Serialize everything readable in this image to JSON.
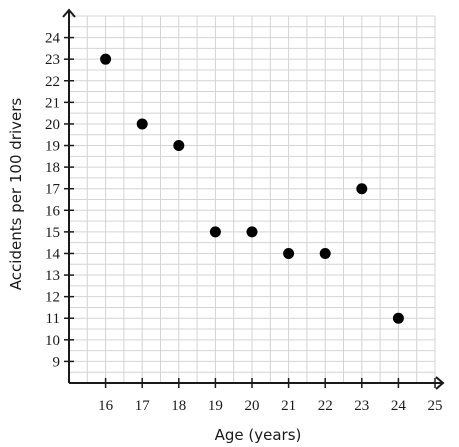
{
  "chart_data": {
    "type": "scatter",
    "title": "",
    "xlabel": "Age (years)",
    "ylabel": "Accidents per 100 drivers",
    "x_ticks": [
      16,
      17,
      18,
      19,
      20,
      21,
      22,
      23,
      24,
      25
    ],
    "y_ticks": [
      9,
      10,
      11,
      12,
      13,
      14,
      15,
      16,
      17,
      18,
      19,
      20,
      21,
      22,
      23,
      24
    ],
    "xlim": [
      15,
      25
    ],
    "ylim": [
      8,
      25
    ],
    "grid": true,
    "x_minor_step": 0.5,
    "y_minor_step": 0.5,
    "points": [
      {
        "x": 16,
        "y": 23
      },
      {
        "x": 17,
        "y": 20
      },
      {
        "x": 18,
        "y": 19
      },
      {
        "x": 19,
        "y": 15
      },
      {
        "x": 20,
        "y": 15
      },
      {
        "x": 21,
        "y": 14
      },
      {
        "x": 22,
        "y": 14
      },
      {
        "x": 23,
        "y": 17
      },
      {
        "x": 24,
        "y": 11
      }
    ],
    "colors": {
      "point": "#000000",
      "grid": "#d4d4d4",
      "axis": "#1a1a1a"
    }
  }
}
